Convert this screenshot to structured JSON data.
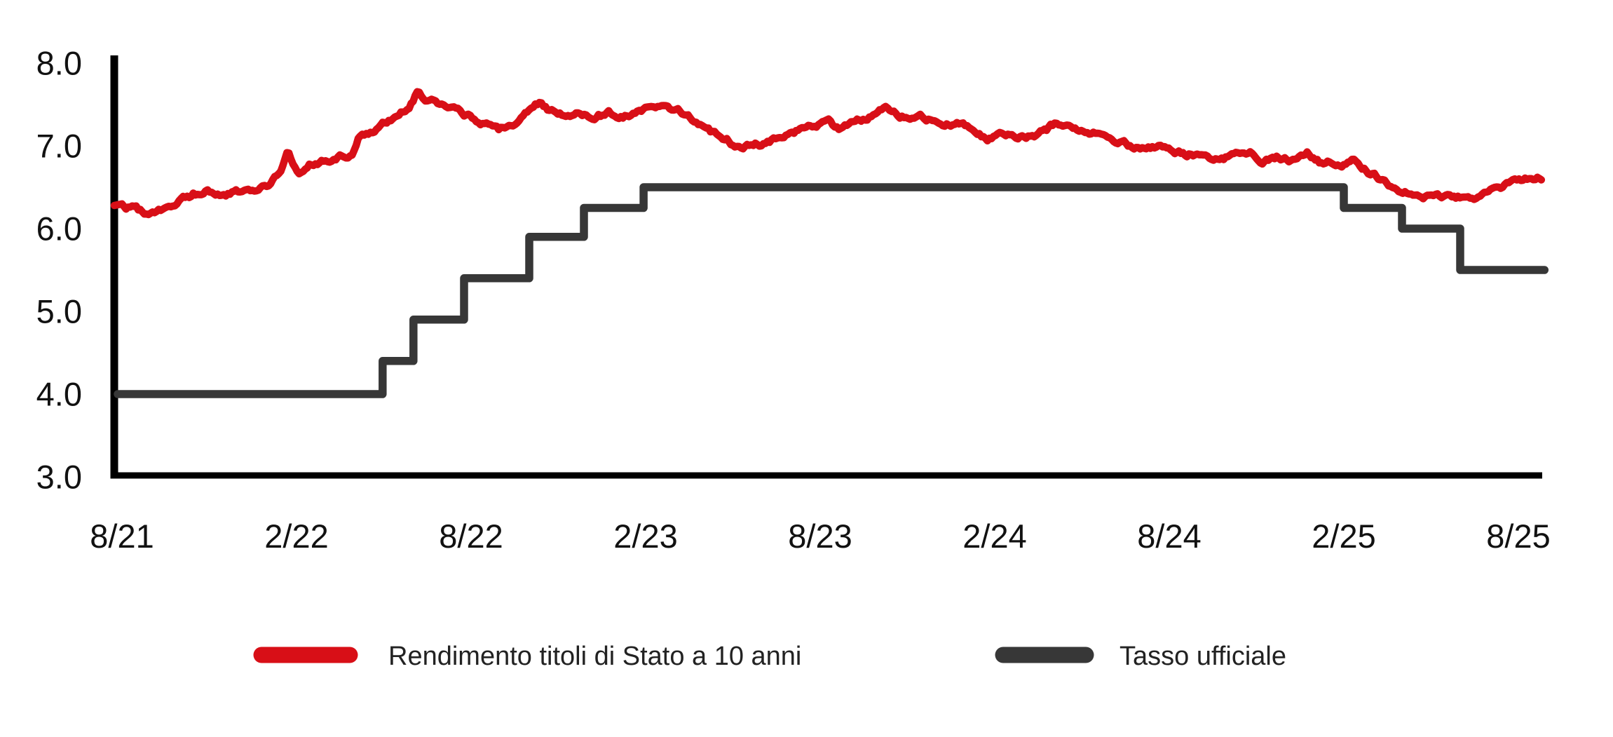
{
  "page": {
    "background": "#ffffff"
  },
  "colors": {
    "axis": "#000000",
    "tick_label": "#111111",
    "legend_text": "#222222",
    "bond_red": "#d80f17",
    "rate_dark": "#373737",
    "background": "#ffffff"
  },
  "legend": {
    "items": [
      {
        "label": "Rendimento titoli di Stato a 10 anni",
        "color": "#d80f17",
        "swatch": "red-rounded-line"
      },
      {
        "label": "Tasso ufficiale",
        "color": "#373737",
        "swatch": "dark-rounded-line"
      }
    ]
  },
  "chart_data": {
    "type": "line",
    "title": "",
    "xlabel": "",
    "ylabel": "",
    "grid": false,
    "legend_position": "bottom",
    "ylim": [
      3.0,
      8.0
    ],
    "y_ticks": [
      8.0,
      7.0,
      6.0,
      5.0,
      4.0,
      3.0
    ],
    "y_tick_labels": [
      "8.0",
      "7.0",
      "6.0",
      "5.0",
      "4.0",
      "3.0"
    ],
    "x_tick_labels": [
      "8/21",
      "2/22",
      "8/22",
      "2/23",
      "8/23",
      "2/24",
      "8/24",
      "2/25",
      "8/25"
    ],
    "x_unit": "months since 8/2021, ticks every 6 months",
    "x_range": [
      0,
      48.8
    ],
    "series": [
      {
        "name": "Rendimento titoli di Stato a 10 anni",
        "type": "noisy-line",
        "color": "#d80f17",
        "points": [
          [
            0,
            6.28
          ],
          [
            0.5,
            6.23
          ],
          [
            1.0,
            6.18
          ],
          [
            1.6,
            6.26
          ],
          [
            2.2,
            6.38
          ],
          [
            2.8,
            6.44
          ],
          [
            3.3,
            6.41
          ],
          [
            3.9,
            6.46
          ],
          [
            4.5,
            6.49
          ],
          [
            5.0,
            6.54
          ],
          [
            5.45,
            6.72
          ],
          [
            5.7,
            6.95
          ],
          [
            6.05,
            6.7
          ],
          [
            6.5,
            6.79
          ],
          [
            7.0,
            6.84
          ],
          [
            7.6,
            6.89
          ],
          [
            7.9,
            6.92
          ],
          [
            8.15,
            7.14
          ],
          [
            8.6,
            7.18
          ],
          [
            9.1,
            7.28
          ],
          [
            9.55,
            7.4
          ],
          [
            9.9,
            7.5
          ],
          [
            10.15,
            7.65
          ],
          [
            10.45,
            7.55
          ],
          [
            10.7,
            7.6
          ],
          [
            11.0,
            7.5
          ],
          [
            11.4,
            7.43
          ],
          [
            11.9,
            7.36
          ],
          [
            12.4,
            7.26
          ],
          [
            12.95,
            7.18
          ],
          [
            13.5,
            7.3
          ],
          [
            14.0,
            7.43
          ],
          [
            14.4,
            7.52
          ],
          [
            14.85,
            7.41
          ],
          [
            15.3,
            7.35
          ],
          [
            15.75,
            7.41
          ],
          [
            16.25,
            7.33
          ],
          [
            16.75,
            7.41
          ],
          [
            17.25,
            7.36
          ],
          [
            17.8,
            7.43
          ],
          [
            18.3,
            7.5
          ],
          [
            18.75,
            7.46
          ],
          [
            19.3,
            7.38
          ],
          [
            19.8,
            7.27
          ],
          [
            20.3,
            7.16
          ],
          [
            20.85,
            7.05
          ],
          [
            21.4,
            7.01
          ],
          [
            21.9,
            7.04
          ],
          [
            22.4,
            7.09
          ],
          [
            22.9,
            7.14
          ],
          [
            23.4,
            7.19
          ],
          [
            23.9,
            7.27
          ],
          [
            24.25,
            7.32
          ],
          [
            24.7,
            7.2
          ],
          [
            25.2,
            7.29
          ],
          [
            25.8,
            7.38
          ],
          [
            26.3,
            7.46
          ],
          [
            26.8,
            7.38
          ],
          [
            27.3,
            7.35
          ],
          [
            27.8,
            7.32
          ],
          [
            28.3,
            7.29
          ],
          [
            28.8,
            7.24
          ],
          [
            29.3,
            7.2
          ],
          [
            29.75,
            7.09
          ],
          [
            30.2,
            7.15
          ],
          [
            30.7,
            7.11
          ],
          [
            31.2,
            7.13
          ],
          [
            31.7,
            7.2
          ],
          [
            32.15,
            7.29
          ],
          [
            32.7,
            7.21
          ],
          [
            33.2,
            7.15
          ],
          [
            33.8,
            7.08
          ],
          [
            34.4,
            7.03
          ],
          [
            35.0,
            6.99
          ],
          [
            35.6,
            6.96
          ],
          [
            36.2,
            6.93
          ],
          [
            36.8,
            6.89
          ],
          [
            37.2,
            6.84
          ],
          [
            37.5,
            6.81
          ],
          [
            38.1,
            6.88
          ],
          [
            38.75,
            6.93
          ],
          [
            39.2,
            6.8
          ],
          [
            39.7,
            6.84
          ],
          [
            40.2,
            6.81
          ],
          [
            40.75,
            6.93
          ],
          [
            41.2,
            6.79
          ],
          [
            41.8,
            6.79
          ],
          [
            42.3,
            6.82
          ],
          [
            42.7,
            6.73
          ],
          [
            43.1,
            6.65
          ],
          [
            43.6,
            6.53
          ],
          [
            44.0,
            6.45
          ],
          [
            44.5,
            6.41
          ],
          [
            45.0,
            6.38
          ],
          [
            45.5,
            6.36
          ],
          [
            46.0,
            6.38
          ],
          [
            46.5,
            6.4
          ],
          [
            47.0,
            6.44
          ],
          [
            47.4,
            6.48
          ],
          [
            47.8,
            6.56
          ],
          [
            48.2,
            6.62
          ],
          [
            48.8,
            6.64
          ]
        ]
      },
      {
        "name": "Tasso ufficiale",
        "type": "step",
        "color": "#373737",
        "step_semantics": "[month_of_change, new_rate]; rate holds until next change",
        "points": [
          [
            0,
            4.0
          ],
          [
            8.96,
            4.4
          ],
          [
            10.02,
            4.9
          ],
          [
            11.76,
            5.4
          ],
          [
            14.0,
            5.9
          ],
          [
            15.88,
            6.25
          ],
          [
            17.93,
            6.5
          ],
          [
            42.0,
            6.25
          ],
          [
            44.0,
            6.0
          ],
          [
            46.0,
            5.5
          ],
          [
            48.9,
            5.5
          ]
        ]
      }
    ]
  }
}
